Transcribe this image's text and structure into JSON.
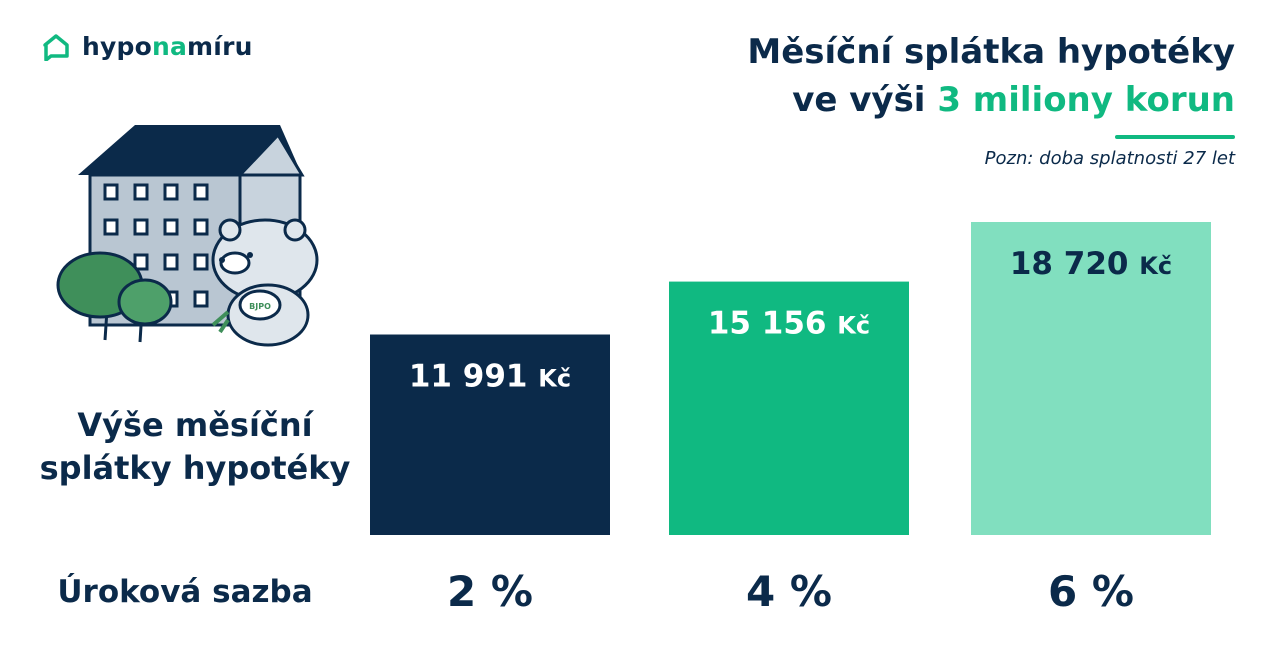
{
  "brand": {
    "logo_pre": "hypo",
    "logo_accent": "na",
    "logo_post": "míru"
  },
  "heading": {
    "line1": "Měsíční splátka hypotéky",
    "line2_prefix": "ve výši ",
    "line2_accent": "3 miliony korun",
    "note": "Pozn: doba splatnosti 27 let"
  },
  "labels": {
    "ylabel_line1": "Výše měsíční",
    "ylabel_line2": "splátky hypotéky",
    "xlabel": "Úroková sazba"
  },
  "illustration": {
    "badge_text": "BJPO",
    "icon": "house-bear-trees-illustration"
  },
  "colors": {
    "navy": "#0b2a4a",
    "green": "#10b981",
    "mint": "#81dfbf",
    "white": "#ffffff"
  },
  "chart_data": {
    "type": "bar",
    "categories": [
      "2 %",
      "4 %",
      "6 %"
    ],
    "values": [
      11991,
      15156,
      18720
    ],
    "value_labels": [
      "11 991",
      "15 156",
      "18 720"
    ],
    "unit": "Kč",
    "bar_colors": [
      "#0b2a4a",
      "#10b981",
      "#81dfbf"
    ],
    "label_colors": [
      "#ffffff",
      "#ffffff",
      "#0b2a4a"
    ],
    "title": "Měsíční splátka hypotéky ve výši 3 miliony korun",
    "xlabel": "Úroková sazba",
    "ylabel": "Výše měsíční splátky hypotéky",
    "ylim": [
      0,
      18720
    ],
    "grid": false,
    "legend": "none"
  }
}
